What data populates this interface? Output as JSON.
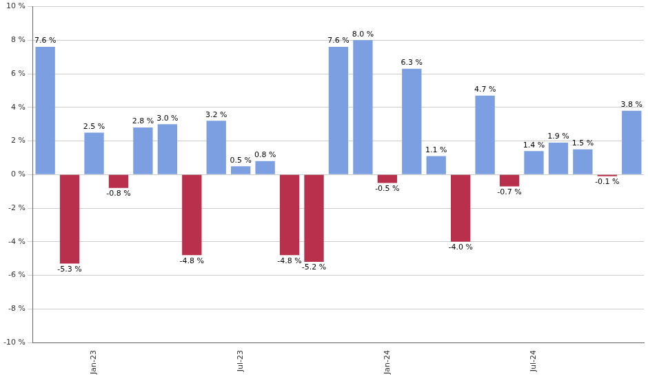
{
  "chart_data": {
    "type": "bar",
    "categories": [
      null,
      null,
      "Jan-23",
      null,
      null,
      null,
      null,
      null,
      "Jul-23",
      null,
      null,
      null,
      null,
      null,
      "Jan-24",
      null,
      null,
      null,
      null,
      null,
      "Jul-24",
      null,
      null,
      null,
      null
    ],
    "values": [
      7.6,
      -5.3,
      2.5,
      -0.8,
      2.8,
      3.0,
      -4.8,
      3.2,
      0.5,
      0.8,
      -4.8,
      -5.2,
      7.6,
      8.0,
      -0.5,
      6.3,
      1.1,
      -4.0,
      4.7,
      -0.7,
      1.4,
      1.9,
      1.5,
      -0.1,
      3.8
    ],
    "value_labels": [
      "7.6 %",
      "-5.3 %",
      "2.5 %",
      "-0.8 %",
      "2.8 %",
      "3.0 %",
      "-4.8 %",
      "3.2 %",
      "0.5 %",
      "0.8 %",
      "-4.8 %",
      "-5.2 %",
      "7.6 %",
      "8.0 %",
      "-0.5 %",
      "6.3 %",
      "1.1 %",
      "-4.0 %",
      "4.7 %",
      "-0.7 %",
      "1.4 %",
      "1.9 %",
      "1.5 %",
      "-0.1 %",
      "3.8 %"
    ],
    "colors": [
      "#7b9fe0",
      "#b8304c",
      "#7b9fe0",
      "#b8304c",
      "#7b9fe0",
      "#7b9fe0",
      "#b8304c",
      "#7b9fe0",
      "#7b9fe0",
      "#7b9fe0",
      "#b8304c",
      "#b8304c",
      "#7b9fe0",
      "#7b9fe0",
      "#b8304c",
      "#7b9fe0",
      "#7b9fe0",
      "#b8304c",
      "#7b9fe0",
      "#b8304c",
      "#7b9fe0",
      "#7b9fe0",
      "#7b9fe0",
      "#b8304c",
      "#7b9fe0"
    ],
    "ylim": [
      -10,
      10
    ],
    "yticks": [
      {
        "value": -10,
        "label": "-10 %"
      },
      {
        "value": -8,
        "label": "-8 %"
      },
      {
        "value": -6,
        "label": "-6 %"
      },
      {
        "value": -4,
        "label": "-4 %"
      },
      {
        "value": -2,
        "label": "-2 %"
      },
      {
        "value": 0,
        "label": "0 %"
      },
      {
        "value": 2,
        "label": "2 %"
      },
      {
        "value": 4,
        "label": "4 %"
      },
      {
        "value": 6,
        "label": "6 %"
      },
      {
        "value": 8,
        "label": "8 %"
      },
      {
        "value": 10,
        "label": "10 %"
      }
    ],
    "grid": true,
    "data_labels": true
  }
}
